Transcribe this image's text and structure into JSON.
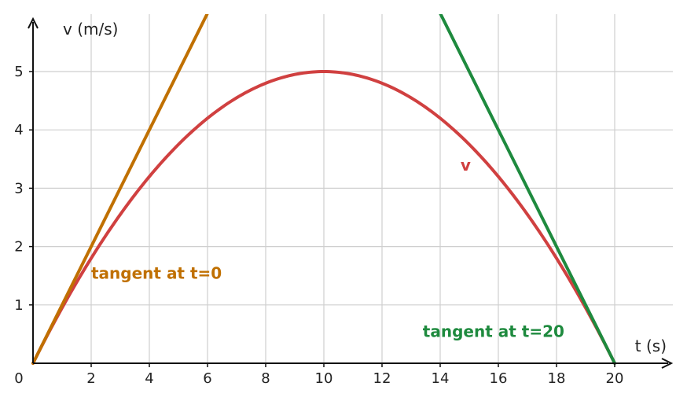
{
  "chart_data": {
    "type": "line",
    "title": "",
    "xlabel": "t (s)",
    "ylabel": "v (m/s)",
    "xlim": [
      0,
      22
    ],
    "ylim": [
      0,
      6
    ],
    "grid": true,
    "x_ticks": [
      2,
      4,
      6,
      8,
      10,
      12,
      14,
      16,
      18,
      20
    ],
    "x_tick_labels": [
      "2",
      "4",
      "6",
      "8",
      "10",
      "12",
      "14",
      "16",
      "18",
      "20"
    ],
    "y_ticks": [
      1,
      2,
      3,
      4,
      5
    ],
    "y_tick_labels": [
      "1",
      "2",
      "3",
      "4",
      "5"
    ],
    "origin_label": "0",
    "series": [
      {
        "name": "v",
        "color": "#d04040",
        "x": [
          0,
          2,
          4,
          6,
          8,
          10,
          12,
          14,
          16,
          18,
          20
        ],
        "y": [
          0,
          1.8,
          3.2,
          4.2,
          4.8,
          5.0,
          4.8,
          4.2,
          3.2,
          1.8,
          0
        ]
      },
      {
        "name": "tangent at t=0",
        "color": "#c07000",
        "x": [
          0,
          6
        ],
        "y": [
          0,
          6
        ]
      },
      {
        "name": "tangent at t=20",
        "color": "#1e8a3e",
        "x": [
          14,
          20
        ],
        "y": [
          6,
          0
        ]
      }
    ],
    "annotations": [
      {
        "text": "v",
        "x": 14.7,
        "y": 3.3,
        "color": "#d04040"
      },
      {
        "text": "tangent at t=0",
        "x": 2.0,
        "y": 1.45,
        "color": "#c07000"
      },
      {
        "text": "tangent at t=20",
        "x": 13.4,
        "y": 0.45,
        "color": "#1e8a3e"
      }
    ]
  }
}
